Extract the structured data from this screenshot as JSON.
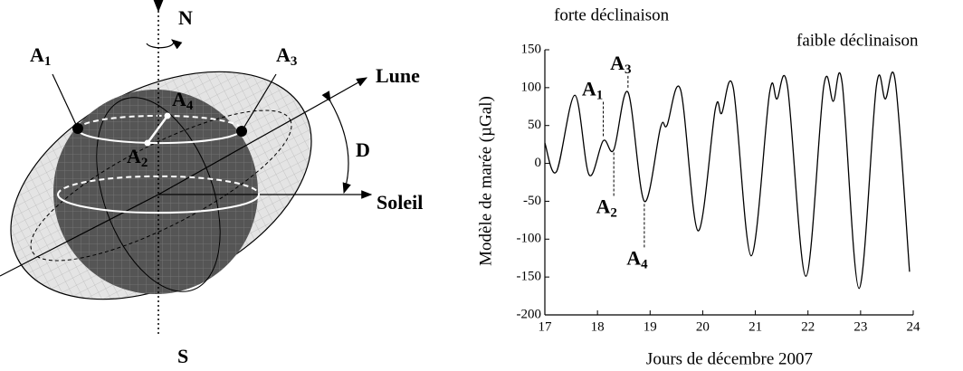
{
  "diagram": {
    "labels": {
      "north": "N",
      "south": "S",
      "moon": "Lune",
      "sun": "Soleil",
      "angle": "D",
      "points": [
        {
          "text": "A",
          "subscript": "1"
        },
        {
          "text": "A",
          "subscript": "2"
        },
        {
          "text": "A",
          "subscript": "3"
        },
        {
          "text": "A",
          "subscript": "4"
        }
      ]
    }
  },
  "chart_data": {
    "type": "line",
    "annotations_top": [
      "forte déclinaison",
      "faible déclinaison"
    ],
    "x_label": "Jours de décembre 2007",
    "y_label": "Modèle de marée (µGal)",
    "xlim": [
      17,
      24
    ],
    "xticks": [
      17,
      18,
      19,
      20,
      21,
      22,
      23,
      24
    ],
    "ylim": [
      -200,
      150
    ],
    "yticks": [
      -200,
      -150,
      -100,
      -50,
      0,
      50,
      100,
      150
    ],
    "series": [
      {
        "color": "#000000",
        "x": [
          17.0,
          17.22,
          17.57,
          17.84,
          18.11,
          18.31,
          18.58,
          18.89,
          19.2,
          19.32,
          19.58,
          19.91,
          20.24,
          20.36,
          20.58,
          20.92,
          21.27,
          21.41,
          21.61,
          21.96,
          22.3,
          22.48,
          22.65,
          22.97,
          23.3,
          23.47,
          23.66,
          23.93
        ],
        "values": [
          27,
          -11,
          90,
          -15,
          30,
          18,
          94,
          -50,
          48,
          50,
          97,
          -89,
          72,
          66,
          100,
          -122,
          93,
          85,
          102,
          -149,
          102,
          82,
          106,
          -165,
          102,
          85,
          108,
          -143
        ]
      }
    ],
    "point_annotations": [
      {
        "text": "A",
        "subscript": "1",
        "x": 18.11
      },
      {
        "text": "A",
        "subscript": "2",
        "x": 18.31
      },
      {
        "text": "A",
        "subscript": "3",
        "x": 18.58
      },
      {
        "text": "A",
        "subscript": "4",
        "x": 18.89
      }
    ]
  }
}
